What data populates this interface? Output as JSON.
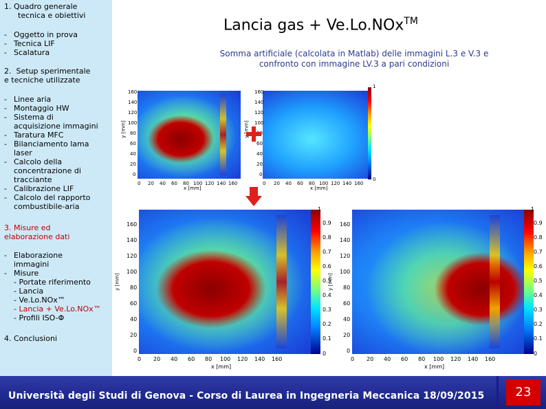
{
  "sidebar": {
    "section1": {
      "num": "1.",
      "title_line1": "Quadro generale",
      "title_line2": "tecnica e obiettivi"
    },
    "section1_items": [
      "Oggetto in prova",
      "Tecnica LIF",
      "Scalatura"
    ],
    "section2": {
      "num": "2.",
      "title_line1": "Setup sperimentale",
      "title_line2": "e tecniche utilizzate"
    },
    "section2_items": [
      [
        "Linee aria"
      ],
      [
        "Montaggio HW"
      ],
      [
        "Sistema di",
        "acquisizione immagini"
      ],
      [
        "Taratura MFC"
      ],
      [
        "Bilanciamento lama",
        "laser"
      ],
      [
        "Calcolo della",
        "concentrazione di",
        "tracciante"
      ],
      [
        "Calibrazione LIF"
      ],
      [
        "Calcolo del rapporto",
        "combustibile-aria"
      ]
    ],
    "section3": {
      "title_line1": "3. Misure ed",
      "title_line2": "elaborazione dati"
    },
    "section3_items": {
      "item1_line1": "Elaborazione",
      "item1_line2": "immagini",
      "item2": "Misure",
      "sub1": "- Portate riferimento",
      "sub2": "- Lancia",
      "sub3": "- Ve.Lo.NOx™",
      "sub4": "- Lancia + Ve.Lo.NOx™",
      "sub5": "- Profili ISO-Φ"
    },
    "section4": "4. Conclusioni"
  },
  "title": {
    "main": "Lancia gas + Ve.Lo.NOx",
    "sup": "TM"
  },
  "subtitle": {
    "line1": "Somma artificiale (calcolata in Matlab) delle immagini L.3 e V.3 e",
    "line2": "confronto con immagine LV.3 a pari condizioni"
  },
  "plots": {
    "small_y_ticks": [
      "160",
      "140",
      "120",
      "100",
      "80",
      "60",
      "40",
      "20",
      "0"
    ],
    "small_x_ticks": [
      "0",
      "20",
      "40",
      "60",
      "80",
      "100",
      "120",
      "140",
      "160"
    ],
    "big_y_ticks": [
      "160",
      "140",
      "120",
      "100",
      "80",
      "60",
      "40",
      "20",
      "0"
    ],
    "big_x_ticks": [
      "0",
      "20",
      "40",
      "60",
      "80",
      "100",
      "120",
      "140",
      "160"
    ],
    "small_cbar_ticks": [
      "1",
      "0"
    ],
    "cbar_ticks": [
      "1",
      "0.9",
      "0.8",
      "0.7",
      "0.6",
      "0.5",
      "0.4",
      "0.3",
      "0.2",
      "0.1",
      "0"
    ],
    "x_label": "x [mm]",
    "y_label": "y [mm]"
  },
  "colors": {
    "accent_red": "#e0201b",
    "footer_blue": "#1f2a8f",
    "sidebar_bg": "#cde9f7"
  },
  "icons": {
    "plus": "plus-icon",
    "arrow": "arrow-down-icon"
  },
  "footer": {
    "text": "Università degli Studi di Genova - Corso di Laurea in Ingegneria Meccanica  18/09/2015",
    "page": "23"
  }
}
